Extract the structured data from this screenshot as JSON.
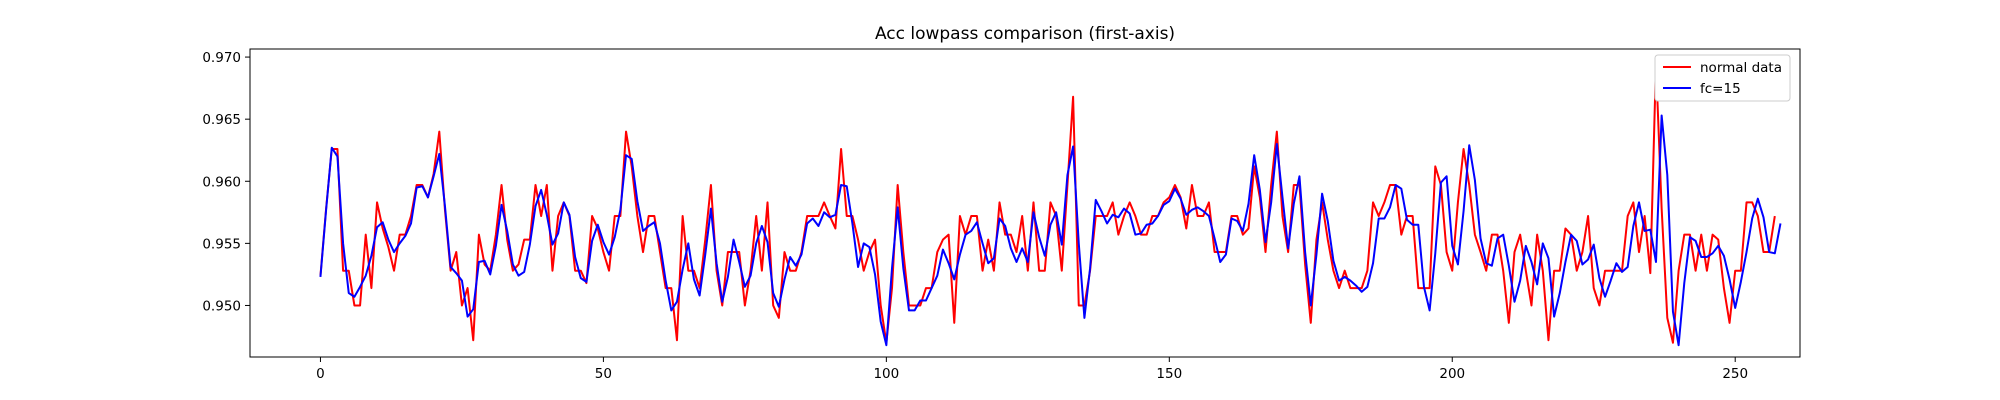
{
  "chart_data": {
    "type": "line",
    "title": "Acc lowpass comparison (first-axis)",
    "xlabel": "",
    "ylabel": "",
    "xlim": [
      -12.45,
      261.45
    ],
    "ylim": [
      0.94585,
      0.97065
    ],
    "xticks": [
      0,
      50,
      100,
      150,
      200,
      250
    ],
    "yticks": [
      0.95,
      0.955,
      0.96,
      0.965,
      0.97
    ],
    "ytick_labels": [
      "0.950",
      "0.955",
      "0.960",
      "0.965",
      "0.970"
    ],
    "grid": false,
    "legend_position": "upper right",
    "series": [
      {
        "name": "normal data",
        "color": "#ff0000",
        "x_start": 0,
        "values": [
          0.9524,
          0.9578,
          0.9626,
          0.9626,
          0.9528,
          0.9528,
          0.95,
          0.95,
          0.9557,
          0.9514,
          0.9583,
          0.9562,
          0.9547,
          0.9528,
          0.9557,
          0.9557,
          0.9572,
          0.9597,
          0.9597,
          0.9587,
          0.9606,
          0.964,
          0.9577,
          0.9528,
          0.9543,
          0.95,
          0.9514,
          0.9472,
          0.9557,
          0.9533,
          0.9528,
          0.9557,
          0.9597,
          0.9553,
          0.9528,
          0.9533,
          0.9553,
          0.9553,
          0.9597,
          0.9572,
          0.9597,
          0.9528,
          0.9572,
          0.9583,
          0.9572,
          0.9528,
          0.9528,
          0.9518,
          0.9572,
          0.9562,
          0.9543,
          0.9528,
          0.9572,
          0.9572,
          0.964,
          0.9612,
          0.9572,
          0.9543,
          0.9572,
          0.9572,
          0.9543,
          0.9514,
          0.9514,
          0.9472,
          0.9572,
          0.9528,
          0.9528,
          0.9514,
          0.9553,
          0.9597,
          0.9528,
          0.95,
          0.9543,
          0.9543,
          0.9543,
          0.95,
          0.9528,
          0.9572,
          0.9528,
          0.9583,
          0.95,
          0.949,
          0.9543,
          0.9528,
          0.9528,
          0.9543,
          0.9572,
          0.9572,
          0.9572,
          0.9583,
          0.9572,
          0.9562,
          0.9626,
          0.9572,
          0.9572,
          0.9553,
          0.9528,
          0.9543,
          0.9553,
          0.95,
          0.947,
          0.9514,
          0.9597,
          0.9543,
          0.95,
          0.95,
          0.95,
          0.9514,
          0.9514,
          0.9543,
          0.9553,
          0.9557,
          0.9486,
          0.9572,
          0.9557,
          0.9572,
          0.9572,
          0.9528,
          0.9553,
          0.9528,
          0.9583,
          0.9557,
          0.9557,
          0.9543,
          0.9572,
          0.9528,
          0.9583,
          0.9528,
          0.9528,
          0.9583,
          0.9572,
          0.9528,
          0.9597,
          0.9668,
          0.95,
          0.95,
          0.9528,
          0.9572,
          0.9572,
          0.9572,
          0.9583,
          0.9557,
          0.9572,
          0.9583,
          0.9572,
          0.9557,
          0.9557,
          0.9572,
          0.9572,
          0.9583,
          0.9587,
          0.9597,
          0.9587,
          0.9562,
          0.9597,
          0.9572,
          0.9572,
          0.9583,
          0.9543,
          0.9543,
          0.9543,
          0.9572,
          0.9572,
          0.9557,
          0.9562,
          0.9612,
          0.9587,
          0.9543,
          0.9597,
          0.964,
          0.9572,
          0.9543,
          0.9597,
          0.9597,
          0.9533,
          0.9486,
          0.9553,
          0.9583,
          0.9553,
          0.9528,
          0.9514,
          0.9528,
          0.9514,
          0.9514,
          0.9514,
          0.9528,
          0.9583,
          0.9572,
          0.9583,
          0.9597,
          0.9597,
          0.9557,
          0.9572,
          0.9572,
          0.9514,
          0.9514,
          0.9514,
          0.9612,
          0.9597,
          0.9543,
          0.9528,
          0.9583,
          0.9626,
          0.9597,
          0.9557,
          0.9543,
          0.9528,
          0.9557,
          0.9557,
          0.9528,
          0.9486,
          0.9543,
          0.9557,
          0.9528,
          0.95,
          0.9557,
          0.9528,
          0.9472,
          0.9528,
          0.9528,
          0.9562,
          0.9557,
          0.9528,
          0.9543,
          0.9572,
          0.9514,
          0.95,
          0.9528,
          0.9528,
          0.9528,
          0.9528,
          0.9572,
          0.9583,
          0.9543,
          0.9572,
          0.9526,
          0.9695,
          0.9578,
          0.949,
          0.947,
          0.9528,
          0.9557,
          0.9557,
          0.9528,
          0.9557,
          0.9528,
          0.9557,
          0.9553,
          0.9514,
          0.9486,
          0.9528,
          0.9528,
          0.9583,
          0.9583,
          0.9572,
          0.9543,
          0.9543,
          0.9572
        ]
      },
      {
        "name": "fc=15",
        "color": "#0000ff",
        "x_start": 0,
        "values": [
          0.9523,
          0.9577,
          0.9627,
          0.962,
          0.955,
          0.951,
          0.9507,
          0.9515,
          0.9524,
          0.954,
          0.9563,
          0.9567,
          0.9553,
          0.9543,
          0.955,
          0.9556,
          0.9566,
          0.9595,
          0.9596,
          0.9587,
          0.9604,
          0.9622,
          0.958,
          0.9531,
          0.9526,
          0.952,
          0.9491,
          0.9497,
          0.9535,
          0.9536,
          0.9525,
          0.9548,
          0.9581,
          0.956,
          0.9533,
          0.9524,
          0.9527,
          0.9549,
          0.958,
          0.9593,
          0.9573,
          0.9549,
          0.9558,
          0.9583,
          0.9573,
          0.9539,
          0.9522,
          0.9519,
          0.9552,
          0.9565,
          0.9551,
          0.9541,
          0.9555,
          0.9577,
          0.9621,
          0.9618,
          0.9584,
          0.956,
          0.9564,
          0.9567,
          0.955,
          0.952,
          0.9496,
          0.9503,
          0.9529,
          0.955,
          0.9521,
          0.9508,
          0.9541,
          0.9578,
          0.9534,
          0.9503,
          0.9523,
          0.9553,
          0.9535,
          0.9515,
          0.9524,
          0.955,
          0.9564,
          0.9551,
          0.951,
          0.9499,
          0.9521,
          0.9539,
          0.9532,
          0.9541,
          0.9566,
          0.957,
          0.9564,
          0.9575,
          0.9571,
          0.9573,
          0.9597,
          0.9596,
          0.9566,
          0.9531,
          0.955,
          0.9547,
          0.9525,
          0.9487,
          0.9468,
          0.953,
          0.9579,
          0.953,
          0.9496,
          0.9496,
          0.9504,
          0.9504,
          0.9514,
          0.9524,
          0.9545,
          0.9534,
          0.9521,
          0.9541,
          0.9557,
          0.956,
          0.9567,
          0.955,
          0.9534,
          0.9538,
          0.957,
          0.9564,
          0.9546,
          0.9535,
          0.9546,
          0.9535,
          0.9575,
          0.9555,
          0.954,
          0.9565,
          0.9575,
          0.9549,
          0.9605,
          0.9628,
          0.955,
          0.949,
          0.953,
          0.9585,
          0.9576,
          0.9566,
          0.9573,
          0.9571,
          0.9578,
          0.9574,
          0.9557,
          0.9558,
          0.9565,
          0.9566,
          0.9572,
          0.9581,
          0.9584,
          0.9594,
          0.9586,
          0.9573,
          0.9577,
          0.9579,
          0.9576,
          0.9572,
          0.9554,
          0.9535,
          0.9541,
          0.957,
          0.9568,
          0.956,
          0.9582,
          0.9621,
          0.9593,
          0.9551,
          0.9583,
          0.963,
          0.9587,
          0.9546,
          0.9582,
          0.9604,
          0.9543,
          0.95,
          0.9541,
          0.959,
          0.9568,
          0.9536,
          0.952,
          0.9523,
          0.952,
          0.9516,
          0.9511,
          0.9515,
          0.9534,
          0.957,
          0.957,
          0.9579,
          0.9597,
          0.9594,
          0.9569,
          0.9565,
          0.9565,
          0.9515,
          0.9496,
          0.9542,
          0.9599,
          0.9604,
          0.9548,
          0.9533,
          0.9576,
          0.9629,
          0.9601,
          0.9554,
          0.9534,
          0.9532,
          0.9554,
          0.9557,
          0.9532,
          0.9503,
          0.952,
          0.9548,
          0.9535,
          0.9517,
          0.955,
          0.9538,
          0.9491,
          0.951,
          0.9535,
          0.9557,
          0.9552,
          0.9533,
          0.9537,
          0.9549,
          0.9522,
          0.9507,
          0.952,
          0.9534,
          0.9527,
          0.9531,
          0.9564,
          0.9583,
          0.956,
          0.9561,
          0.9535,
          0.9653,
          0.9605,
          0.9495,
          0.9468,
          0.9518,
          0.9555,
          0.9552,
          0.9539,
          0.9539,
          0.9542,
          0.9548,
          0.954,
          0.9521,
          0.9498,
          0.9519,
          0.9543,
          0.957,
          0.9586,
          0.9571,
          0.9543,
          0.9542,
          0.9566
        ]
      }
    ]
  }
}
